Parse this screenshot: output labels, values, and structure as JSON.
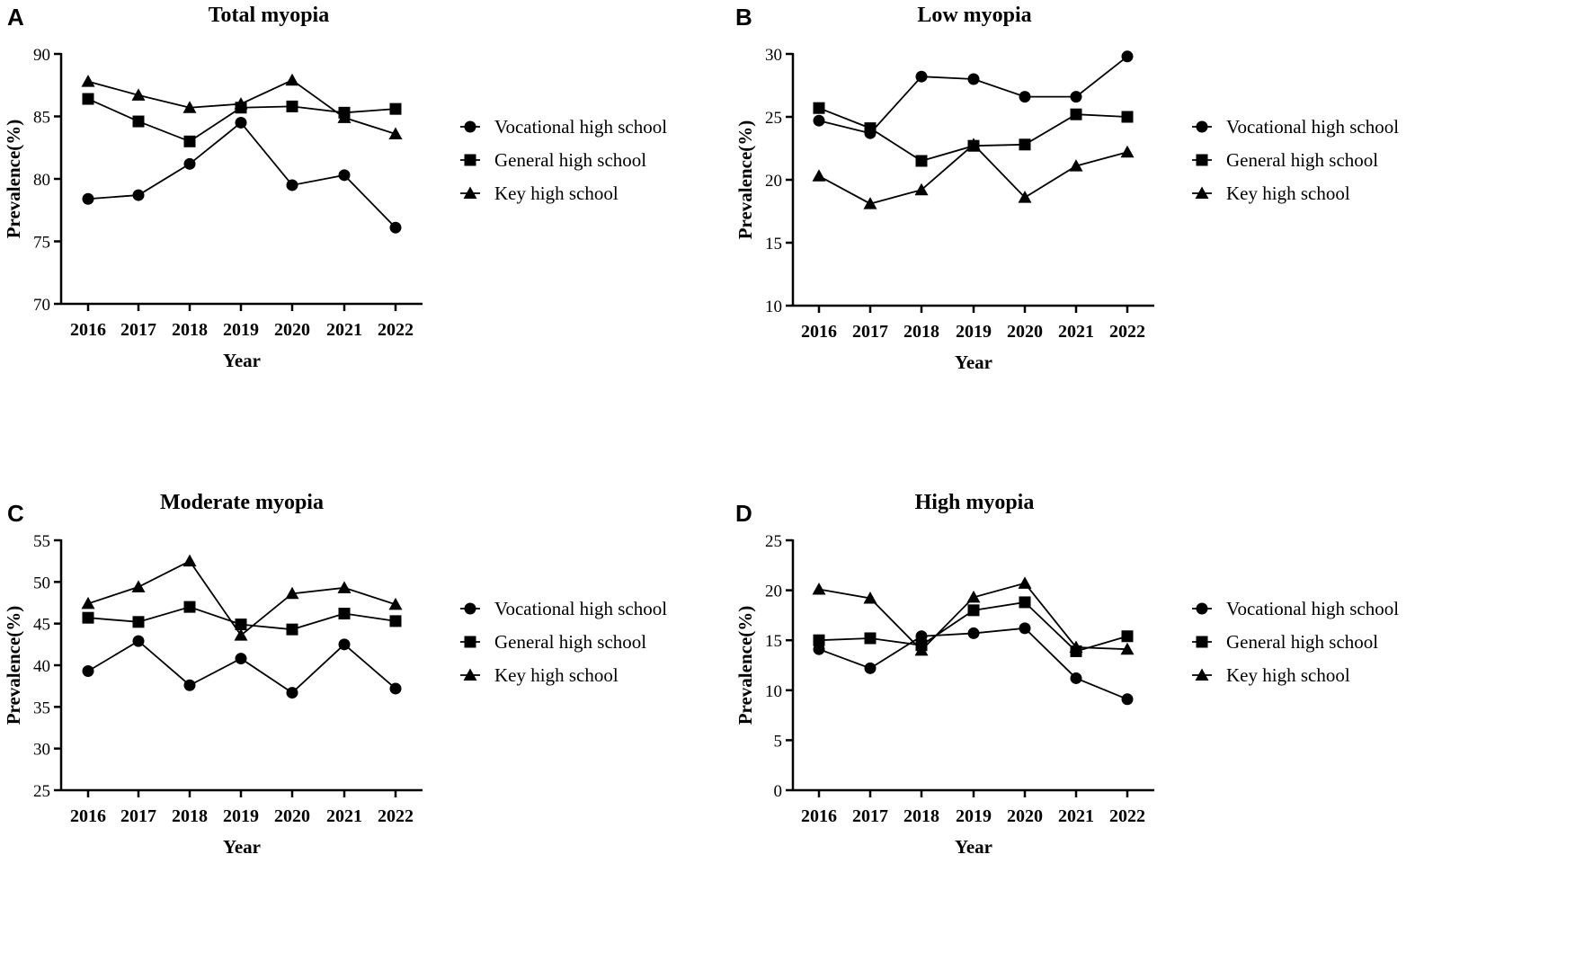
{
  "chart_data": [
    {
      "type": "line",
      "panel": "A",
      "title": "Total myopia",
      "xlabel": "Year",
      "ylabel": "Prevalence(%)",
      "categories": [
        "2016",
        "2017",
        "2018",
        "2019",
        "2020",
        "2021",
        "2022"
      ],
      "ylim": [
        70,
        90
      ],
      "yticks": [
        "70",
        "75",
        "80",
        "85",
        "90"
      ],
      "series": [
        {
          "name": "Vocational high school",
          "marker": "circle",
          "values": [
            78.4,
            78.7,
            81.2,
            84.5,
            79.5,
            80.3,
            76.1
          ]
        },
        {
          "name": "General high school",
          "marker": "square",
          "values": [
            86.4,
            84.6,
            83.0,
            85.7,
            85.8,
            85.3,
            85.6
          ]
        },
        {
          "name": "Key high school",
          "marker": "triangle",
          "values": [
            87.8,
            86.7,
            85.7,
            86.0,
            87.9,
            84.9,
            83.6
          ]
        }
      ]
    },
    {
      "type": "line",
      "panel": "B",
      "title": "Low myopia",
      "xlabel": "Year",
      "ylabel": "Prevalence(%)",
      "categories": [
        "2016",
        "2017",
        "2018",
        "2019",
        "2020",
        "2021",
        "2022"
      ],
      "ylim": [
        10,
        30
      ],
      "yticks": [
        "10",
        "15",
        "20",
        "25",
        "30"
      ],
      "series": [
        {
          "name": "Vocational high school",
          "marker": "circle",
          "values": [
            24.7,
            23.7,
            28.2,
            28.0,
            26.6,
            26.6,
            29.8
          ]
        },
        {
          "name": "General high school",
          "marker": "square",
          "values": [
            25.7,
            24.1,
            21.5,
            22.7,
            22.8,
            25.2,
            25.0
          ]
        },
        {
          "name": "Key high school",
          "marker": "triangle",
          "values": [
            20.3,
            18.1,
            19.2,
            22.8,
            18.6,
            21.1,
            22.2
          ]
        }
      ]
    },
    {
      "type": "line",
      "panel": "C",
      "title": "Moderate myopia",
      "xlabel": "Year",
      "ylabel": "Prevalence(%)",
      "categories": [
        "2016",
        "2017",
        "2018",
        "2019",
        "2020",
        "2021",
        "2022"
      ],
      "ylim": [
        25,
        55
      ],
      "yticks": [
        "25",
        "30",
        "35",
        "40",
        "45",
        "50",
        "55"
      ],
      "series": [
        {
          "name": "Vocational high school",
          "marker": "circle",
          "values": [
            39.3,
            42.9,
            37.6,
            40.8,
            36.7,
            42.5,
            37.2
          ]
        },
        {
          "name": "General high school",
          "marker": "square",
          "values": [
            45.7,
            45.2,
            47.0,
            44.9,
            44.3,
            46.2,
            45.3
          ]
        },
        {
          "name": "Key high school",
          "marker": "triangle",
          "values": [
            47.4,
            49.4,
            52.5,
            43.6,
            48.6,
            49.3,
            47.3
          ]
        }
      ]
    },
    {
      "type": "line",
      "panel": "D",
      "title": "High myopia",
      "xlabel": "Year",
      "ylabel": "Prevalence(%)",
      "categories": [
        "2016",
        "2017",
        "2018",
        "2019",
        "2020",
        "2021",
        "2022"
      ],
      "ylim": [
        0,
        25
      ],
      "yticks": [
        "0",
        "5",
        "10",
        "15",
        "20",
        "25"
      ],
      "series": [
        {
          "name": "Vocational high school",
          "marker": "circle",
          "values": [
            14.1,
            12.2,
            15.4,
            15.7,
            16.2,
            11.2,
            9.1
          ]
        },
        {
          "name": "General high school",
          "marker": "square",
          "values": [
            15.0,
            15.2,
            14.5,
            18.0,
            18.8,
            13.9,
            15.4
          ]
        },
        {
          "name": "Key high school",
          "marker": "triangle",
          "values": [
            20.1,
            19.2,
            14.0,
            19.3,
            20.7,
            14.3,
            14.1
          ]
        }
      ]
    }
  ]
}
